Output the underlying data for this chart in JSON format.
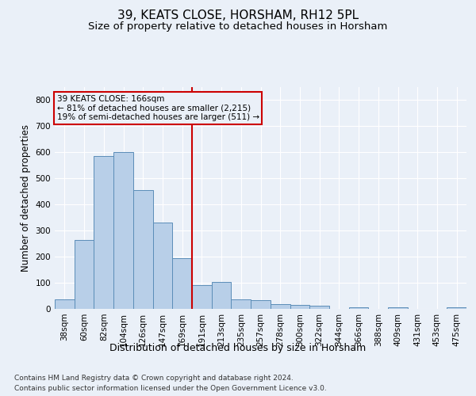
{
  "title1": "39, KEATS CLOSE, HORSHAM, RH12 5PL",
  "title2": "Size of property relative to detached houses in Horsham",
  "xlabel": "Distribution of detached houses by size in Horsham",
  "ylabel": "Number of detached properties",
  "categories": [
    "38sqm",
    "60sqm",
    "82sqm",
    "104sqm",
    "126sqm",
    "147sqm",
    "169sqm",
    "191sqm",
    "213sqm",
    "235sqm",
    "257sqm",
    "278sqm",
    "300sqm",
    "322sqm",
    "344sqm",
    "366sqm",
    "388sqm",
    "409sqm",
    "431sqm",
    "453sqm",
    "475sqm"
  ],
  "values": [
    35,
    265,
    585,
    600,
    455,
    330,
    195,
    90,
    102,
    35,
    32,
    17,
    16,
    12,
    0,
    6,
    0,
    7,
    0,
    0,
    7
  ],
  "bar_color": "#b8cfe8",
  "bar_edge_color": "#5b8db8",
  "vline_color": "#cc0000",
  "annotation_text": "39 KEATS CLOSE: 166sqm\n← 81% of detached houses are smaller (2,215)\n19% of semi-detached houses are larger (511) →",
  "annotation_box_color": "#cc0000",
  "footer1": "Contains HM Land Registry data © Crown copyright and database right 2024.",
  "footer2": "Contains public sector information licensed under the Open Government Licence v3.0.",
  "bg_color": "#eaf0f8",
  "plot_bg_color": "#eaf0f8",
  "ylim": [
    0,
    850
  ],
  "yticks": [
    0,
    100,
    200,
    300,
    400,
    500,
    600,
    700,
    800
  ],
  "grid_color": "#ffffff",
  "title1_fontsize": 11,
  "title2_fontsize": 9.5,
  "xlabel_fontsize": 9,
  "ylabel_fontsize": 8.5,
  "tick_fontsize": 7.5,
  "footer_fontsize": 6.5
}
